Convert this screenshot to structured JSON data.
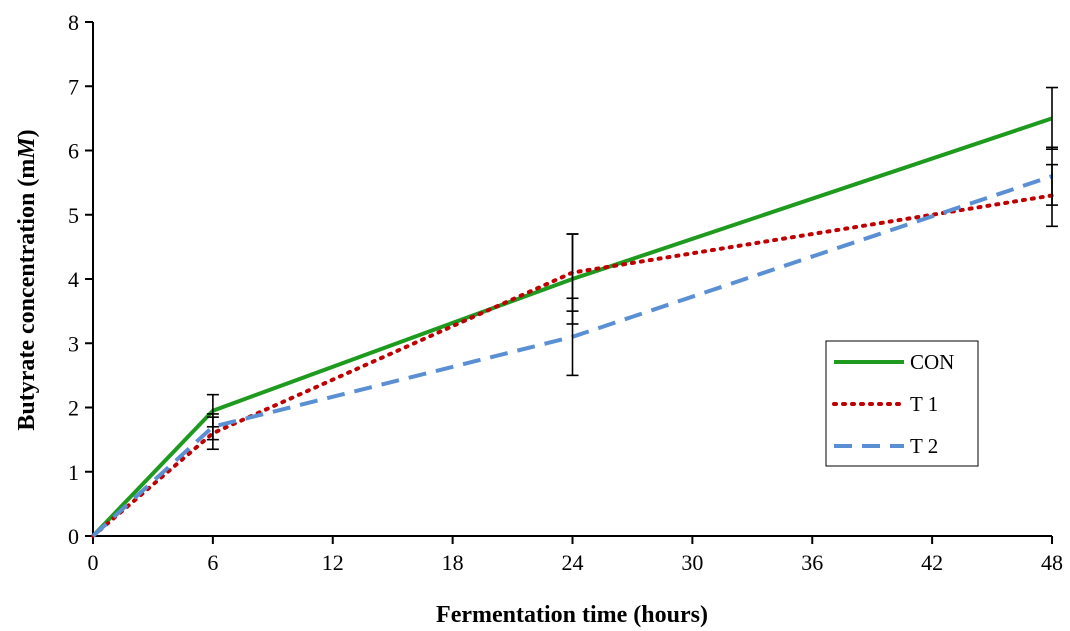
{
  "chart_data": {
    "type": "line",
    "title": "",
    "xlabel": "Fermentation time (hours)",
    "ylabel_prefix": "Butyrate concentration (m",
    "ylabel_italic": "M",
    "ylabel_suffix": ")",
    "x_ticks": [
      0,
      6,
      12,
      18,
      24,
      30,
      36,
      42,
      48
    ],
    "y_ticks": [
      0,
      1,
      2,
      3,
      4,
      5,
      6,
      7,
      8
    ],
    "xlim": [
      0,
      48
    ],
    "ylim": [
      0,
      8
    ],
    "grid": false,
    "legend_position": "right",
    "x": [
      0,
      6,
      24,
      48
    ],
    "series": [
      {
        "name": "CON",
        "values": [
          0,
          1.95,
          4.0,
          6.5
        ],
        "errors": [
          0,
          0.25,
          0.7,
          0.48
        ],
        "color": "#1e9a1e",
        "style": "solid"
      },
      {
        "name": "T 1",
        "values": [
          0,
          1.6,
          4.1,
          5.3
        ],
        "errors": [
          0,
          0.25,
          0.6,
          0.48
        ],
        "color": "#c00000",
        "style": "dotted"
      },
      {
        "name": "T 2",
        "values": [
          0,
          1.7,
          3.1,
          5.6
        ],
        "errors": [
          0,
          0.2,
          0.6,
          0.45
        ],
        "color": "#5b8fd4",
        "style": "dashed"
      }
    ]
  }
}
